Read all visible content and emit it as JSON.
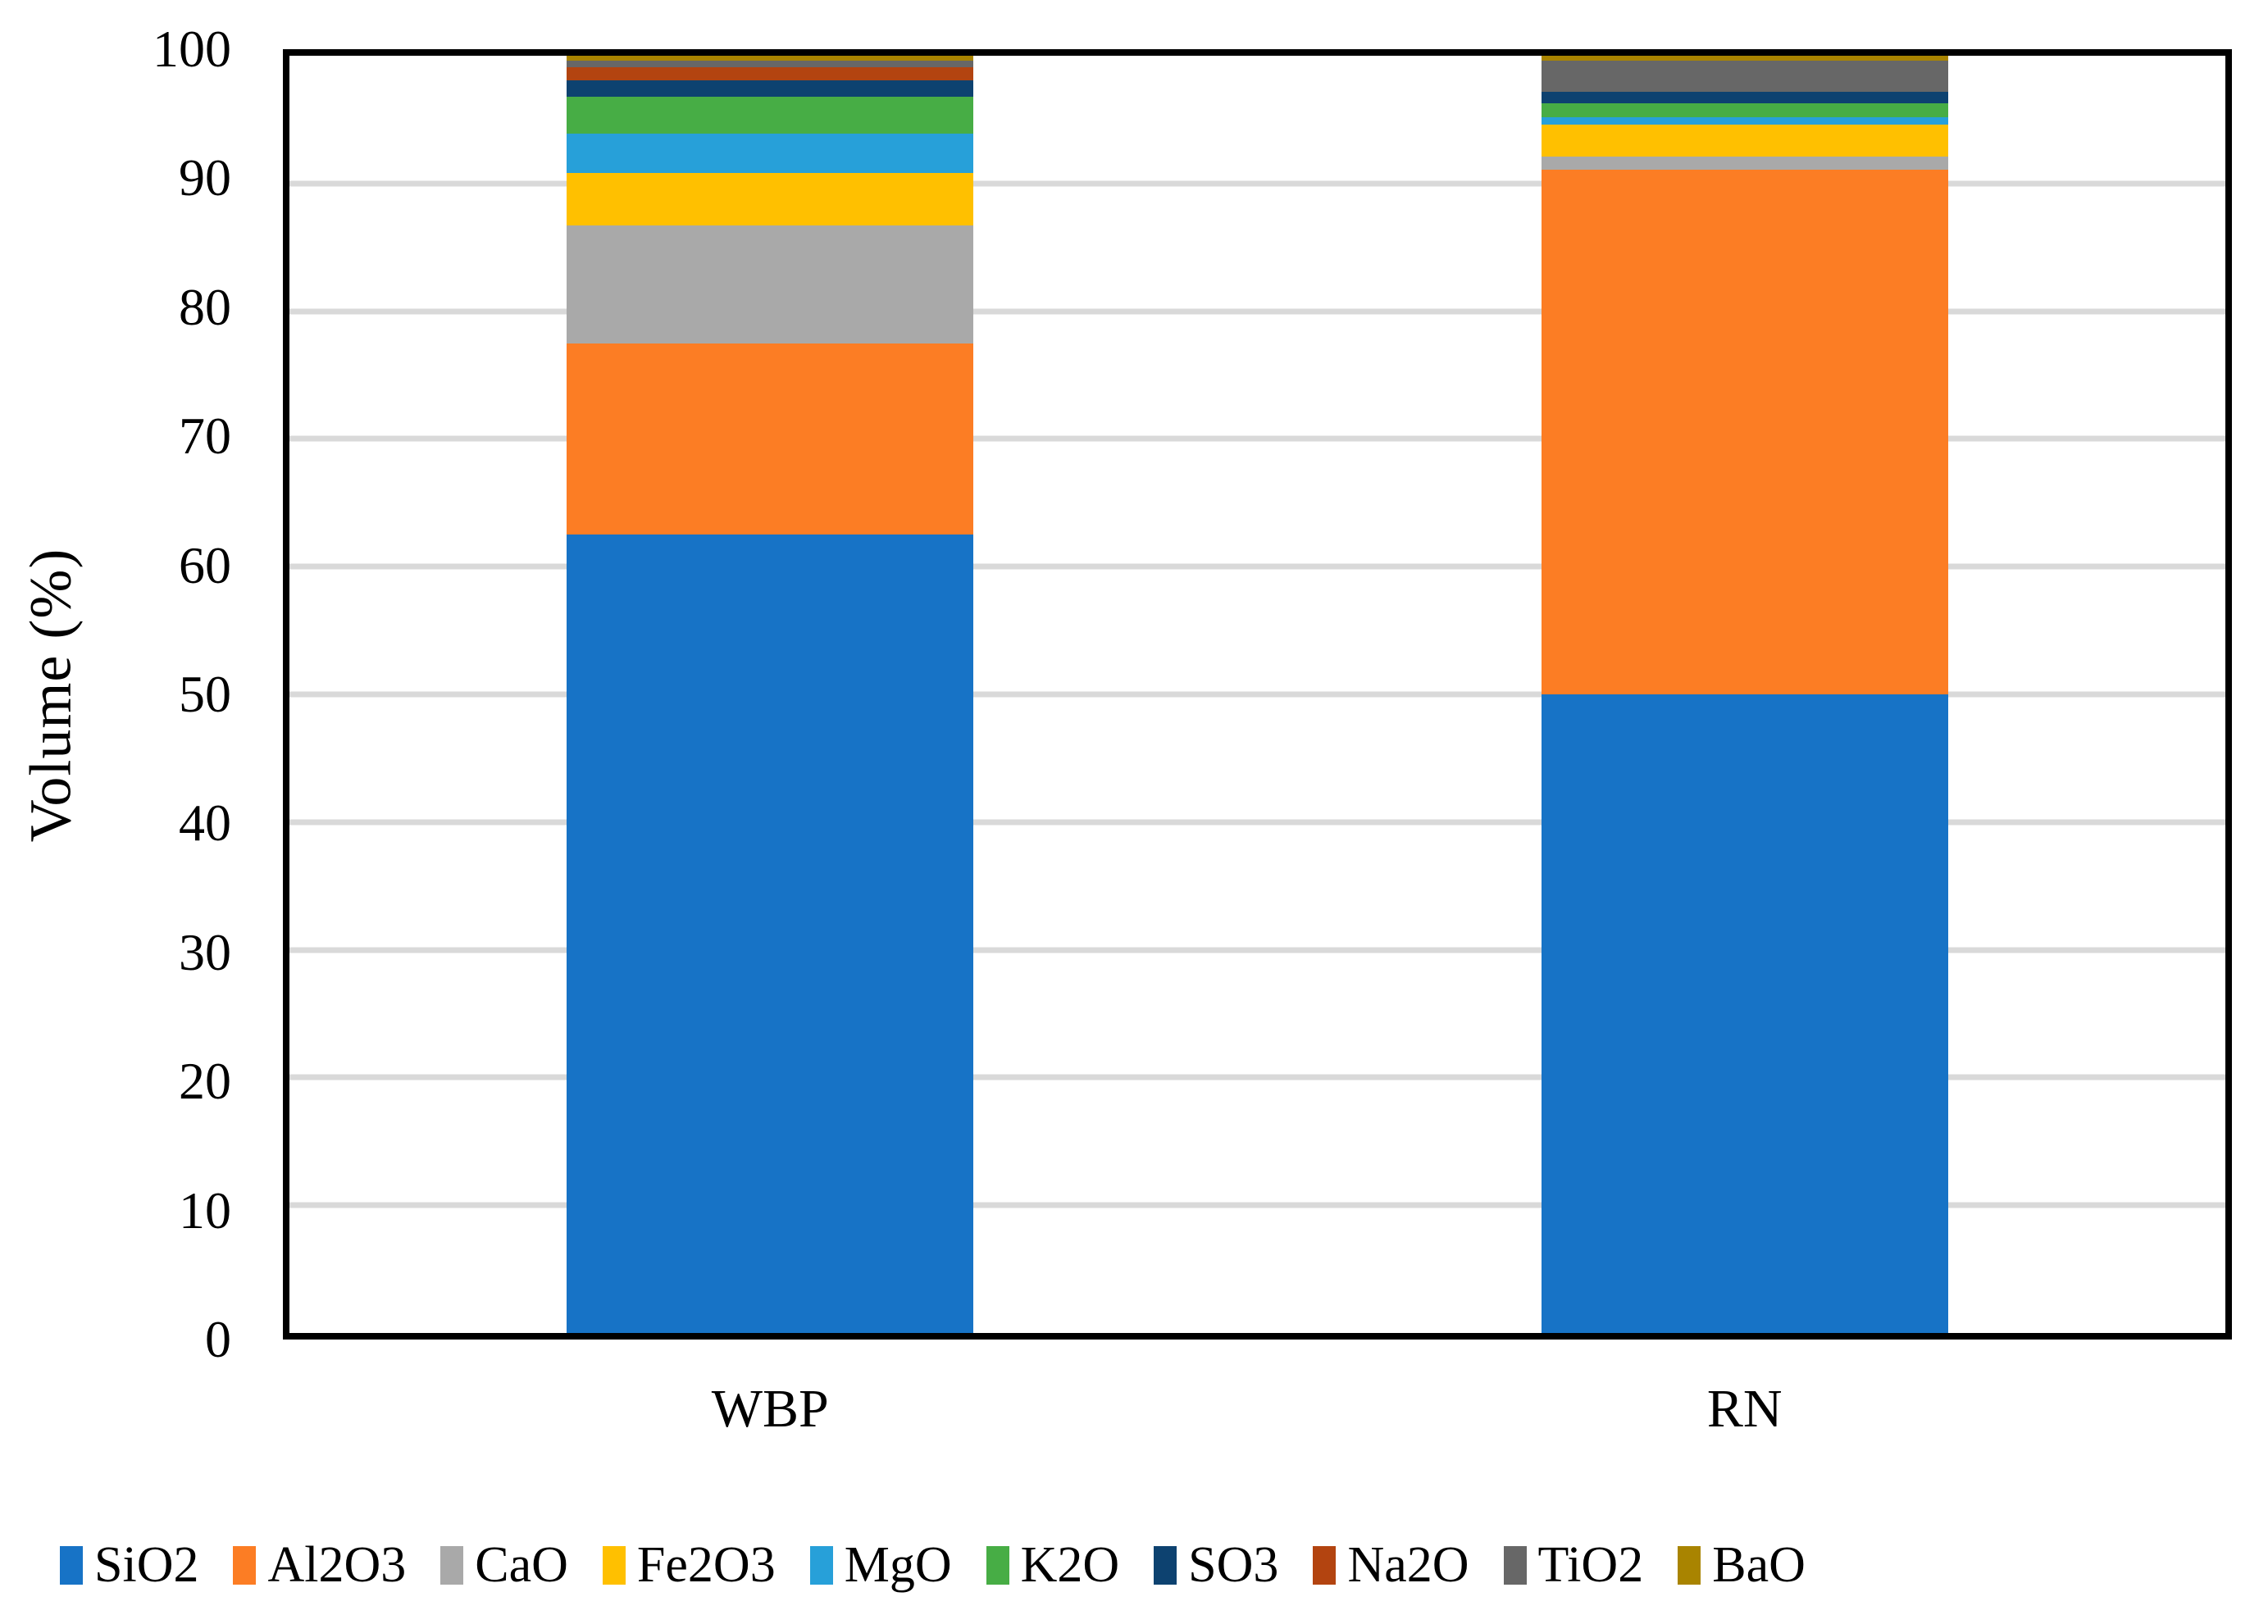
{
  "chart_data": {
    "type": "bar",
    "stacked": true,
    "title": "",
    "xlabel": "",
    "ylabel": "Volume (%)",
    "ylim": [
      0,
      100
    ],
    "grid": true,
    "legend_position": "bottom",
    "categories": [
      "WBP",
      "RN"
    ],
    "series": [
      {
        "name": "SiO2",
        "color": "#1773C6",
        "values": [
          62.5,
          50.0
        ]
      },
      {
        "name": "Al2O3",
        "color": "#FC7D24",
        "values": [
          15.0,
          41.1
        ]
      },
      {
        "name": "CaO",
        "color": "#A9A9A9",
        "values": [
          9.2,
          1.0
        ]
      },
      {
        "name": "Fe2O3",
        "color": "#FFC000",
        "values": [
          4.1,
          2.5
        ]
      },
      {
        "name": "MgO",
        "color": "#27A0D9",
        "values": [
          3.1,
          0.6
        ]
      },
      {
        "name": "K2O",
        "color": "#47AD45",
        "values": [
          2.9,
          1.1
        ]
      },
      {
        "name": "SO3",
        "color": "#0D4270",
        "values": [
          1.3,
          0.9
        ]
      },
      {
        "name": "Na2O",
        "color": "#B34410",
        "values": [
          1.0,
          0.0
        ]
      },
      {
        "name": "TiO2",
        "color": "#676767",
        "values": [
          0.5,
          2.4
        ]
      },
      {
        "name": "BaO",
        "color": "#A98400",
        "values": [
          0.4,
          0.4
        ]
      }
    ],
    "y_ticks": [
      {
        "label": "0",
        "value": 0
      },
      {
        "label": "10",
        "value": 10
      },
      {
        "label": "20",
        "value": 20
      },
      {
        "label": "30",
        "value": 30
      },
      {
        "label": "40",
        "value": 40
      },
      {
        "label": "50",
        "value": 50
      },
      {
        "label": "60",
        "value": 60
      },
      {
        "label": "70",
        "value": 70
      },
      {
        "label": "80",
        "value": 80
      },
      {
        "label": "90",
        "value": 90
      },
      {
        "label": "100",
        "value": 100
      }
    ],
    "gridline_values": [
      10,
      20,
      30,
      40,
      50,
      60,
      70,
      80,
      90
    ],
    "colors": {
      "gridline": "#D9D9D9",
      "axis": "#000000",
      "background": "#FFFFFF"
    }
  }
}
